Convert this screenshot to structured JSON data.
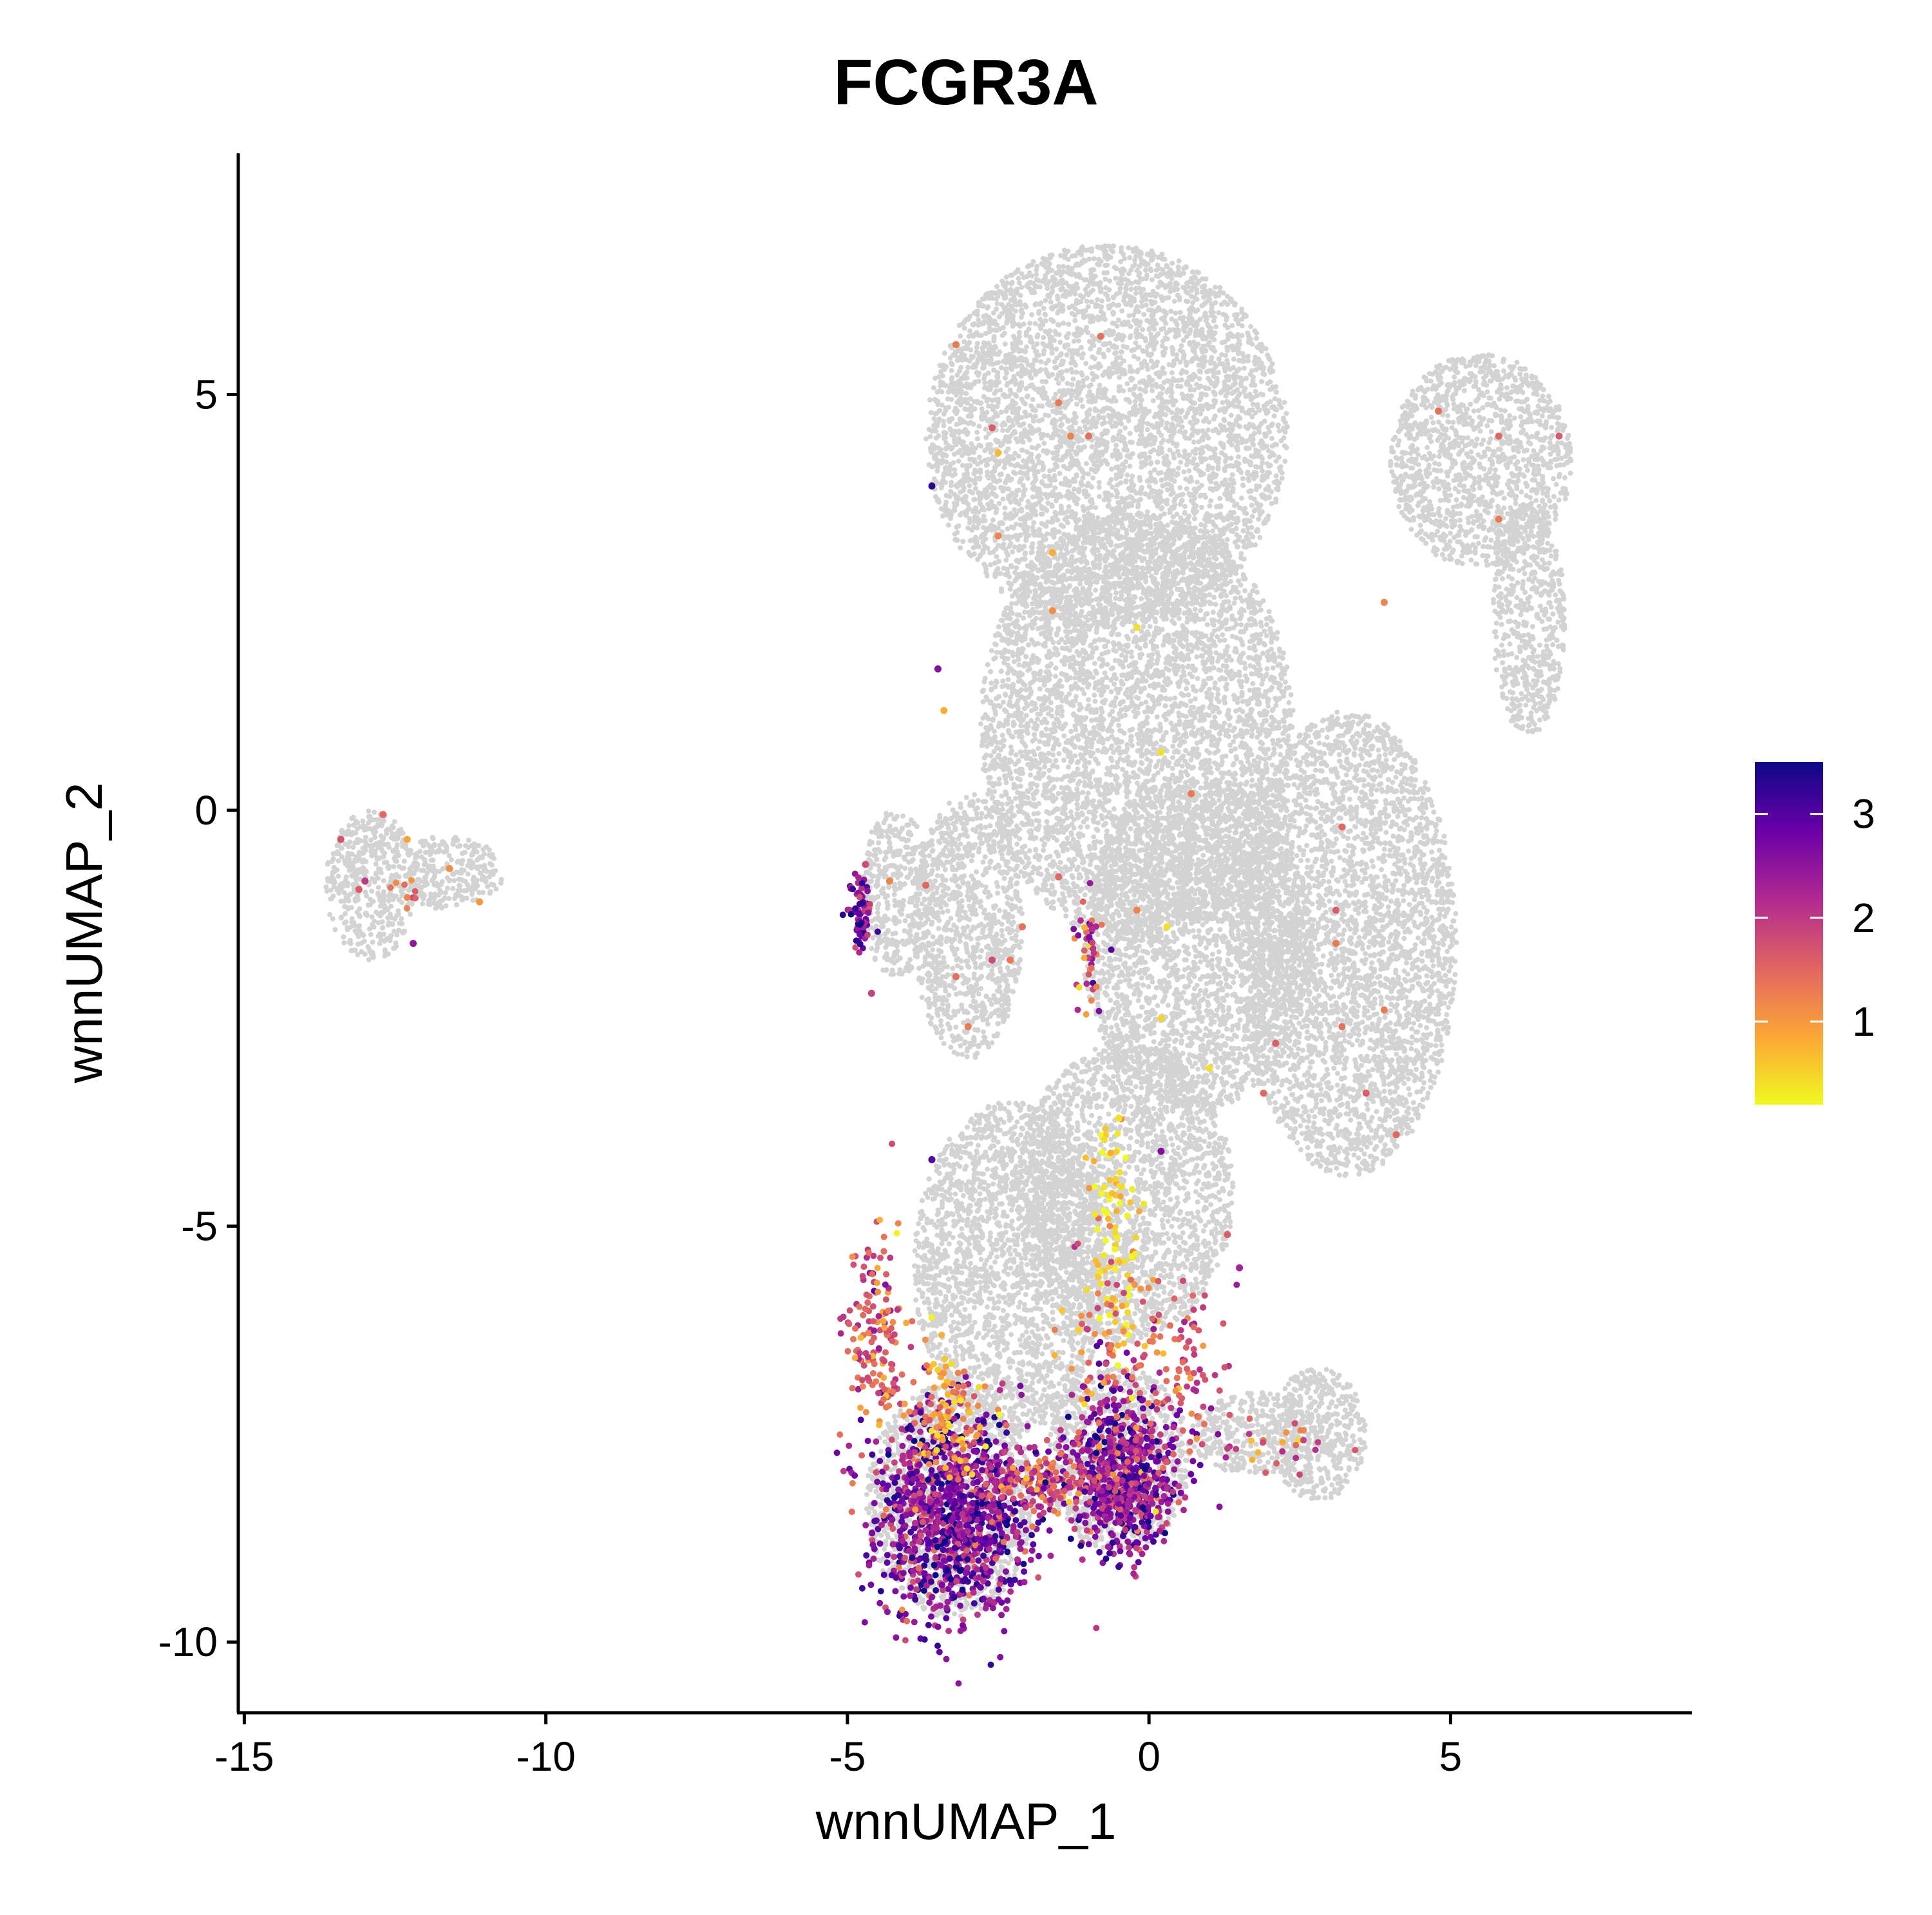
{
  "colors": {
    "background_cells": "#d3d3d3",
    "axis": "#000000",
    "scale_low": "#f0f921",
    "scale_mid1": "#fca636",
    "scale_mid2": "#e16462",
    "scale_mid3": "#b12a90",
    "scale_mid4": "#6a00a8",
    "scale_high": "#0d0887"
  },
  "chart_data": {
    "type": "scatter",
    "title": "FCGR3A",
    "xlabel": "wnnUMAP_1",
    "ylabel": "wnnUMAP_2",
    "xlim": [
      -15.1,
      9.0
    ],
    "ylim": [
      -10.85,
      7.9
    ],
    "x_ticks": [
      -15,
      -10,
      -5,
      0,
      5
    ],
    "x_tick_labels": [
      "-15",
      "-10",
      "-5",
      "0",
      "5"
    ],
    "y_ticks": [
      -10,
      -5,
      0,
      5
    ],
    "y_tick_labels": [
      "-10",
      "-5",
      "0",
      "5"
    ],
    "grid": false,
    "legend_placement": "right",
    "color_scale": {
      "palette": "plasma (reversed: yellow = low, dark purple = high)",
      "min": 0.2,
      "max": 3.5,
      "ticks": [
        1,
        2,
        3
      ],
      "tick_labels": [
        "1",
        "2",
        "3"
      ]
    },
    "background_regions": [
      {
        "name": "upper main body",
        "cx": -0.7,
        "cy": 4.5,
        "rx": 3.0,
        "ry": 2.3
      },
      {
        "name": "upper right lobe",
        "cx": 5.5,
        "cy": 4.2,
        "rx": 1.5,
        "ry": 1.3
      },
      {
        "name": "right arm",
        "cx": 6.3,
        "cy": 2.3,
        "rx": 0.6,
        "ry": 1.4
      },
      {
        "name": "mid stem",
        "cx": -0.2,
        "cy": 1.0,
        "rx": 2.6,
        "ry": 2.6
      },
      {
        "name": "right mid mass",
        "cx": 3.3,
        "cy": -1.6,
        "rx": 1.8,
        "ry": 2.8
      },
      {
        "name": "central middle",
        "cx": 0.8,
        "cy": -1.6,
        "rx": 1.9,
        "ry": 2.0
      },
      {
        "name": "lower stem",
        "cx": -0.4,
        "cy": -4.6,
        "rx": 1.8,
        "ry": 1.8
      },
      {
        "name": "left upper-mid",
        "cx": -3.0,
        "cy": -1.4,
        "rx": 0.9,
        "ry": 1.6
      },
      {
        "name": "left small lobe",
        "cx": -4.2,
        "cy": -1.0,
        "rx": 0.6,
        "ry": 1.0
      },
      {
        "name": "lower connector",
        "cx": -2.3,
        "cy": -5.5,
        "rx": 1.6,
        "ry": 2.0
      },
      {
        "name": "lower right small",
        "cx": 2.8,
        "cy": -7.5,
        "rx": 0.8,
        "ry": 0.8
      },
      {
        "name": "lower right arm",
        "cx": 1.8,
        "cy": -7.5,
        "rx": 1.1,
        "ry": 0.5
      },
      {
        "name": "bottom left cluster",
        "cx": -3.3,
        "cy": -8.3,
        "rx": 1.4,
        "ry": 1.4
      },
      {
        "name": "bottom right cluster",
        "cx": -0.5,
        "cy": -7.8,
        "rx": 1.2,
        "ry": 1.1
      },
      {
        "name": "far left island",
        "cx": -12.9,
        "cy": -0.9,
        "rx": 0.75,
        "ry": 0.9
      },
      {
        "name": "far left island arm",
        "cx": -11.6,
        "cy": -0.75,
        "rx": 0.9,
        "ry": 0.45
      }
    ],
    "expressing_groups": [
      {
        "name": "bottom left monocyte cluster",
        "cx": -3.3,
        "cy": -8.5,
        "sx": 0.65,
        "sy": 0.6,
        "n": 1100,
        "mean": 2.6,
        "sd": 0.6
      },
      {
        "name": "bottom right monocyte cluster",
        "cx": -0.4,
        "cy": -8.0,
        "sx": 0.5,
        "sy": 0.5,
        "n": 700,
        "mean": 2.5,
        "sd": 0.6
      },
      {
        "name": "left rim",
        "cx": -4.5,
        "cy": -6.3,
        "sx": 0.25,
        "sy": 0.6,
        "n": 150,
        "mean": 1.6,
        "sd": 0.5
      },
      {
        "name": "connector middle",
        "cx": -3.3,
        "cy": -7.2,
        "sx": 0.3,
        "sy": 0.35,
        "n": 110,
        "mean": 1.0,
        "sd": 0.4
      },
      {
        "name": "connector bridge",
        "cx": -1.9,
        "cy": -8.1,
        "sx": 0.5,
        "sy": 0.2,
        "n": 150,
        "mean": 1.8,
        "sd": 0.6
      },
      {
        "name": "upper stem yellow",
        "cx": -0.6,
        "cy": -5.0,
        "sx": 0.2,
        "sy": 0.6,
        "n": 80,
        "mean": 0.5,
        "sd": 0.3
      },
      {
        "name": "stem mixed",
        "cx": -0.7,
        "cy": -6.5,
        "sx": 0.4,
        "sy": 0.5,
        "n": 70,
        "mean": 1.3,
        "sd": 0.5
      },
      {
        "name": "stem right",
        "cx": 0.5,
        "cy": -6.6,
        "sx": 0.4,
        "sy": 0.5,
        "n": 90,
        "mean": 1.6,
        "sd": 0.5
      },
      {
        "name": "left lobe bright",
        "cx": -4.8,
        "cy": -1.3,
        "sx": 0.1,
        "sy": 0.25,
        "n": 70,
        "mean": 2.8,
        "sd": 0.6
      },
      {
        "name": "mid column",
        "cx": -1.0,
        "cy": -1.7,
        "sx": 0.12,
        "sy": 0.35,
        "n": 45,
        "mean": 2.0,
        "sd": 0.6
      },
      {
        "name": "far left island",
        "cx": -12.4,
        "cy": -1.0,
        "sx": 0.15,
        "sy": 0.12,
        "n": 10,
        "mean": 1.3,
        "sd": 0.4
      },
      {
        "name": "lower right arm",
        "cx": 2.0,
        "cy": -7.6,
        "sx": 0.6,
        "sy": 0.2,
        "n": 30,
        "mean": 1.6,
        "sd": 0.5
      }
    ],
    "sparse_points": [
      {
        "x": -12.7,
        "y": -0.05,
        "value": 1.5
      },
      {
        "x": -12.3,
        "y": -0.35,
        "value": 0.9
      },
      {
        "x": -13.4,
        "y": -0.35,
        "value": 1.7
      },
      {
        "x": -13.0,
        "y": -0.85,
        "value": 2.0
      },
      {
        "x": -11.6,
        "y": -0.7,
        "value": 1.1
      },
      {
        "x": -11.1,
        "y": -1.1,
        "value": 1.0
      },
      {
        "x": -12.2,
        "y": -1.6,
        "value": 2.5
      },
      {
        "x": -13.1,
        "y": -0.95,
        "value": 1.6
      },
      {
        "x": -3.2,
        "y": 5.6,
        "value": 1.3
      },
      {
        "x": -0.8,
        "y": 5.7,
        "value": 1.4
      },
      {
        "x": -1.5,
        "y": 4.9,
        "value": 1.3
      },
      {
        "x": -2.6,
        "y": 4.6,
        "value": 1.6
      },
      {
        "x": -2.5,
        "y": 4.3,
        "value": 0.7
      },
      {
        "x": -1.3,
        "y": 4.5,
        "value": 1.2
      },
      {
        "x": -1.0,
        "y": 4.5,
        "value": 1.4
      },
      {
        "x": -3.6,
        "y": 3.9,
        "value": 3.3
      },
      {
        "x": -2.5,
        "y": 3.3,
        "value": 1.2
      },
      {
        "x": -1.6,
        "y": 3.1,
        "value": 0.8
      },
      {
        "x": -1.6,
        "y": 2.4,
        "value": 1.1
      },
      {
        "x": -0.2,
        "y": 2.2,
        "value": 0.4
      },
      {
        "x": -3.5,
        "y": 1.7,
        "value": 2.6
      },
      {
        "x": -3.4,
        "y": 1.2,
        "value": 0.8
      },
      {
        "x": 0.2,
        "y": 0.7,
        "value": 0.4
      },
      {
        "x": 0.7,
        "y": 0.2,
        "value": 1.3
      },
      {
        "x": 4.8,
        "y": 4.8,
        "value": 1.4
      },
      {
        "x": 5.8,
        "y": 4.5,
        "value": 1.5
      },
      {
        "x": 6.8,
        "y": 4.5,
        "value": 1.6
      },
      {
        "x": 5.8,
        "y": 3.5,
        "value": 1.3
      },
      {
        "x": 3.9,
        "y": 2.5,
        "value": 1.2
      },
      {
        "x": 3.2,
        "y": -0.2,
        "value": 1.5
      },
      {
        "x": 3.1,
        "y": -1.2,
        "value": 1.6
      },
      {
        "x": 3.1,
        "y": -1.6,
        "value": 1.3
      },
      {
        "x": 3.2,
        "y": -2.6,
        "value": 1.4
      },
      {
        "x": 3.9,
        "y": -2.4,
        "value": 1.3
      },
      {
        "x": 3.6,
        "y": -3.4,
        "value": 1.6
      },
      {
        "x": 4.1,
        "y": -3.9,
        "value": 1.5
      },
      {
        "x": 2.1,
        "y": -2.8,
        "value": 1.6
      },
      {
        "x": 1.9,
        "y": -3.4,
        "value": 1.5
      },
      {
        "x": 1.0,
        "y": -3.1,
        "value": 0.4
      },
      {
        "x": 0.2,
        "y": -2.5,
        "value": 0.5
      },
      {
        "x": 0.3,
        "y": -1.4,
        "value": 0.4
      },
      {
        "x": -0.2,
        "y": -1.2,
        "value": 1.2
      },
      {
        "x": -1.5,
        "y": -0.8,
        "value": 1.5
      },
      {
        "x": -2.1,
        "y": -1.4,
        "value": 1.4
      },
      {
        "x": -2.3,
        "y": -1.8,
        "value": 1.3
      },
      {
        "x": -2.6,
        "y": -1.8,
        "value": 1.8
      },
      {
        "x": -3.2,
        "y": -2.0,
        "value": 1.4
      },
      {
        "x": -3.0,
        "y": -2.6,
        "value": 1.3
      },
      {
        "x": -4.7,
        "y": -0.65,
        "value": 1.8
      },
      {
        "x": -4.3,
        "y": -0.85,
        "value": 1.2
      },
      {
        "x": -3.7,
        "y": -0.9,
        "value": 1.5
      },
      {
        "x": -4.6,
        "y": -2.2,
        "value": 1.9
      },
      {
        "x": -3.6,
        "y": -4.2,
        "value": 3.0
      },
      {
        "x": 0.2,
        "y": -4.1,
        "value": 2.6
      },
      {
        "x": -0.5,
        "y": -3.7,
        "value": 0.4
      },
      {
        "x": 1.5,
        "y": -5.5,
        "value": 2.3
      },
      {
        "x": 1.3,
        "y": -5.1,
        "value": 1.6
      }
    ]
  }
}
